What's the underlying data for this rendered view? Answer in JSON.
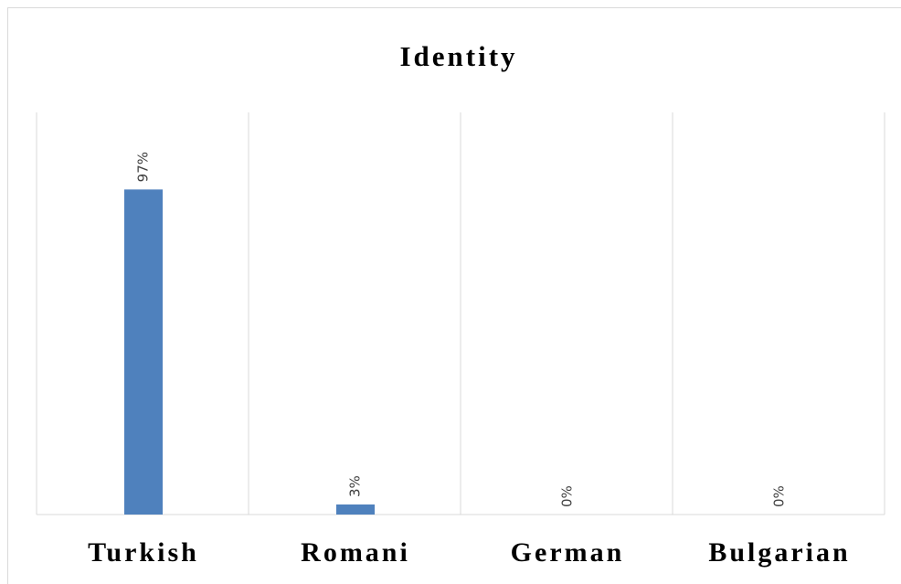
{
  "chart_data": {
    "type": "bar",
    "title": "Identity",
    "categories": [
      "Turkish",
      "Romani",
      "German",
      "Bulgarian"
    ],
    "values": [
      97,
      3,
      0,
      0
    ],
    "value_labels": [
      "97%",
      "3%",
      "0%",
      "0%"
    ],
    "color": "#4f81bd",
    "ylim": [
      0,
      120
    ],
    "grid": true
  }
}
